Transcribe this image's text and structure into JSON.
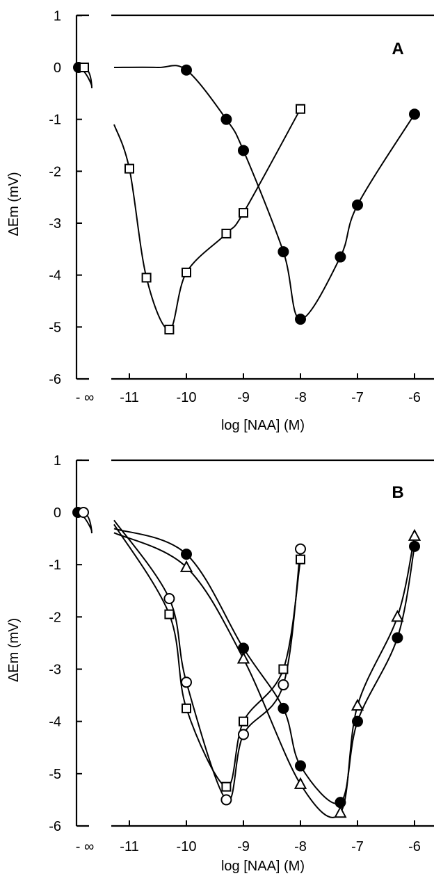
{
  "chart_data": [
    {
      "type": "line",
      "panel_label": "A",
      "xlabel": "log [NAA]   (M)",
      "ylabel": "ΔEm   (mV)",
      "xlim": [
        -11.25,
        -5.8
      ],
      "ylim": [
        -6,
        1
      ],
      "x_ticks": [
        {
          "v": -11,
          "label": "-11"
        },
        {
          "v": -10,
          "label": "-10"
        },
        {
          "v": -9,
          "label": "-9"
        },
        {
          "v": -8,
          "label": "-8"
        },
        {
          "v": -7,
          "label": "-7"
        },
        {
          "v": -6,
          "label": "-6"
        }
      ],
      "x_infinity_label": "- ∞",
      "y_ticks": [
        {
          "v": 1,
          "label": "1"
        },
        {
          "v": 0,
          "label": "0"
        },
        {
          "v": -1,
          "label": "-1"
        },
        {
          "v": -2,
          "label": "-2"
        },
        {
          "v": -3,
          "label": "-3"
        },
        {
          "v": -4,
          "label": "-4"
        },
        {
          "v": -5,
          "label": "-5"
        },
        {
          "v": -6,
          "label": "-6"
        }
      ],
      "zero_points": [
        {
          "marker": "filled-circle",
          "y": 0
        },
        {
          "marker": "open-square",
          "y": 0
        }
      ],
      "series": [
        {
          "marker": "open-square",
          "x": [
            -11,
            -10.7,
            -10.3,
            -10,
            -9.3,
            -9,
            -8
          ],
          "y": [
            -1.95,
            -4.05,
            -5.05,
            -3.95,
            -3.2,
            -2.8,
            -0.8
          ]
        },
        {
          "marker": "filled-circle",
          "x": [
            -10,
            -9.3,
            -9,
            -8.3,
            -8,
            -7.3,
            -7,
            -6
          ],
          "y": [
            -0.05,
            -1.0,
            -1.6,
            -3.55,
            -4.85,
            -3.65,
            -2.65,
            -0.9
          ]
        }
      ]
    },
    {
      "type": "line",
      "panel_label": "B",
      "xlabel": "log [NAA]   (M)",
      "ylabel": "ΔEm   (mV)",
      "xlim": [
        -11.25,
        -5.8
      ],
      "ylim": [
        -6,
        1
      ],
      "x_ticks": [
        {
          "v": -11,
          "label": "-11"
        },
        {
          "v": -10,
          "label": "-10"
        },
        {
          "v": -9,
          "label": "-9"
        },
        {
          "v": -8,
          "label": "-8"
        },
        {
          "v": -7,
          "label": "-7"
        },
        {
          "v": -6,
          "label": "-6"
        }
      ],
      "x_infinity_label": "- ∞",
      "y_ticks": [
        {
          "v": 1,
          "label": "1"
        },
        {
          "v": 0,
          "label": "0"
        },
        {
          "v": -1,
          "label": "-1"
        },
        {
          "v": -2,
          "label": "-2"
        },
        {
          "v": -3,
          "label": "-3"
        },
        {
          "v": -4,
          "label": "-4"
        },
        {
          "v": -5,
          "label": "-5"
        },
        {
          "v": -6,
          "label": "-6"
        }
      ],
      "zero_points": [
        {
          "marker": "filled-circle",
          "y": 0
        },
        {
          "marker": "open-circle",
          "y": 0
        }
      ],
      "series": [
        {
          "marker": "open-circle",
          "x": [
            -10.3,
            -10,
            -9.3,
            -9,
            -8.3,
            -8
          ],
          "y": [
            -1.65,
            -3.25,
            -5.5,
            -4.25,
            -3.3,
            -0.7
          ]
        },
        {
          "marker": "open-square",
          "x": [
            -10.3,
            -10,
            -9.3,
            -9,
            -8.3,
            -8
          ],
          "y": [
            -1.95,
            -3.75,
            -5.25,
            -4.0,
            -3.0,
            -0.9
          ]
        },
        {
          "marker": "filled-circle",
          "x": [
            -10,
            -9,
            -8.3,
            -8,
            -7.3,
            -7,
            -6.3,
            -6
          ],
          "y": [
            -0.8,
            -2.6,
            -3.75,
            -4.85,
            -5.55,
            -4.0,
            -2.4,
            -0.65
          ]
        },
        {
          "marker": "open-triangle",
          "x": [
            -10,
            -9,
            -8,
            -7.3,
            -7,
            -6.3,
            -6
          ],
          "y": [
            -1.05,
            -2.8,
            -5.2,
            -5.75,
            -3.7,
            -2.0,
            -0.45
          ]
        }
      ]
    }
  ]
}
